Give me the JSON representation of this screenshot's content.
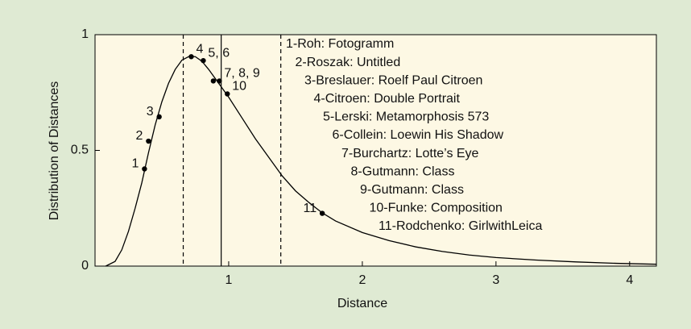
{
  "chart_data": {
    "type": "line",
    "xlabel": "Distance",
    "ylabel": "Distribution of Distances",
    "xlim": [
      0,
      4.2
    ],
    "ylim": [
      0,
      1
    ],
    "xticks": [
      1,
      2,
      3,
      4
    ],
    "yticks": [
      0,
      0.5,
      1
    ],
    "series": [
      {
        "color": "#000000",
        "x": [
          0.08,
          0.15,
          0.2,
          0.25,
          0.3,
          0.35,
          0.4,
          0.45,
          0.5,
          0.55,
          0.6,
          0.65,
          0.7,
          0.75,
          0.8,
          0.85,
          0.9,
          0.95,
          1.0,
          1.1,
          1.2,
          1.3,
          1.4,
          1.5,
          1.6,
          1.7,
          1.8,
          2.0,
          2.2,
          2.4,
          2.6,
          2.8,
          3.0,
          3.3,
          3.6,
          3.9,
          4.2
        ],
        "values": [
          0,
          0.02,
          0.07,
          0.15,
          0.25,
          0.36,
          0.49,
          0.61,
          0.71,
          0.79,
          0.85,
          0.89,
          0.905,
          0.905,
          0.885,
          0.85,
          0.81,
          0.77,
          0.73,
          0.64,
          0.55,
          0.47,
          0.39,
          0.325,
          0.275,
          0.23,
          0.195,
          0.145,
          0.11,
          0.083,
          0.063,
          0.048,
          0.037,
          0.026,
          0.018,
          0.012,
          0.008
        ]
      }
    ],
    "points": {
      "x": [
        0.37,
        0.4,
        0.48,
        0.72,
        0.81,
        0.885,
        0.93,
        0.99,
        1.7
      ],
      "values": [
        0.42,
        0.54,
        0.645,
        0.905,
        0.888,
        0.8,
        0.8,
        0.744,
        0.228
      ],
      "labels": [
        "1",
        "2",
        "3",
        "4",
        "5, 6",
        null,
        "7, 8, 9",
        "10",
        "11"
      ]
    },
    "vlines": [
      {
        "value": 0.66,
        "style": "dashed"
      },
      {
        "value": 0.944,
        "style": "solid"
      },
      {
        "value": 1.39,
        "style": "dashed"
      }
    ],
    "legend_items": [
      "1-Roh: Fotogramm",
      "2-Roszak: Untitled",
      "3-Breslauer: Roelf Paul Citroen",
      "4-Citroen: Double Portrait",
      "5-Lerski: Metamorphosis 573",
      "6-Collein: Loewin His Shadow",
      "7-Burchartz: Lotte’s Eye",
      "8-Gutmann: Class",
      "9-Gutmann: Class",
      "10-Funke: Composition",
      "11-Rodchenko: GirlwithLeica"
    ]
  }
}
